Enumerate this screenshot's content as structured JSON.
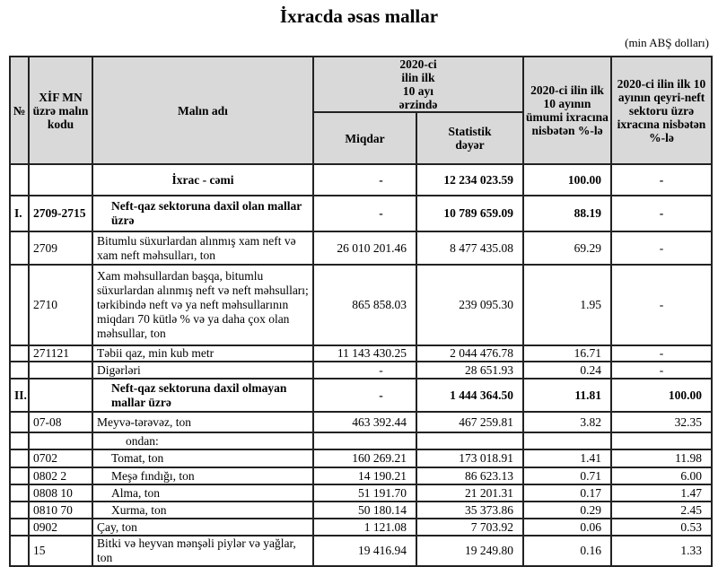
{
  "title": "İxracda əsas mallar",
  "unit": "(min ABŞ dolları)",
  "headers": {
    "no": "№",
    "code": "XİF MN üzrə malın kodu",
    "name": "Malın adı",
    "period": "2020-ci ilin ilk 10 ayı ərzində",
    "qty": "Miqdar",
    "value": "Statistik dəyər",
    "pct_total": "2020-ci ilin ilk 10 ayının ümumi ixracına nisbətən %-lə",
    "pct_nonoil": "2020-ci ilin ilk 10 ayının qeyri-neft sektoru üzrə ixracına nisbətən %-lə"
  },
  "rows": [
    {
      "no": "",
      "code": "",
      "name": "İxrac - cəmi",
      "qty": "-",
      "value": "12 234 023.59",
      "pct_total": "100.00",
      "pct_nonoil": "-",
      "kind": "total"
    },
    {
      "no": "I.",
      "code": "2709-2715",
      "name": "Neft-qaz sektoruna daxil olan mallar üzrə",
      "qty": "-",
      "value": "10 789 659.09",
      "pct_total": "88.19",
      "pct_nonoil": "-",
      "kind": "section"
    },
    {
      "no": "",
      "code": "2709",
      "name": "Bitumlu süxurlardan alınmış xam neft və xam neft məhsulları, ton",
      "qty": "26 010 201.46",
      "value": "8 477 435.08",
      "pct_total": "69.29",
      "pct_nonoil": "-",
      "kind": "item"
    },
    {
      "no": "",
      "code": "2710",
      "name": "Xam məhsullardan başqa, bitumlu süxurlardan alınmış neft və neft məhsulları; tərkibində neft və ya neft məhsullarının miqdarı 70 kütlə % və ya daha çox olan məhsullar, ton",
      "qty": "865 858.03",
      "value": "239 095.30",
      "pct_total": "1.95",
      "pct_nonoil": "-",
      "kind": "item"
    },
    {
      "no": "",
      "code": "271121",
      "name": "Təbii qaz, min kub metr",
      "qty": "11 143 430.25",
      "value": "2 044 476.78",
      "pct_total": "16.71",
      "pct_nonoil": "-",
      "kind": "item"
    },
    {
      "no": "",
      "code": "",
      "name": "Digərləri",
      "qty": "-",
      "value": "28 651.93",
      "pct_total": "0.24",
      "pct_nonoil": "-",
      "kind": "item"
    },
    {
      "no": "II.",
      "code": "",
      "name": "Neft-qaz sektoruna daxil olmayan mallar üzrə",
      "qty": "-",
      "value": "1 444 364.50",
      "pct_total": "11.81",
      "pct_nonoil": "100.00",
      "kind": "section"
    },
    {
      "no": "",
      "code": "07-08",
      "name": "Meyvə-tərəvəz, ton",
      "qty": "463 392.44",
      "value": "467 259.81",
      "pct_total": "3.82",
      "pct_nonoil": "32.35",
      "kind": "item"
    },
    {
      "no": "",
      "code": "",
      "name": "ondan:",
      "qty": "",
      "value": "",
      "pct_total": "",
      "pct_nonoil": "",
      "kind": "subhead"
    },
    {
      "no": "",
      "code": "0702",
      "name": "Tomat, ton",
      "qty": "160 269.21",
      "value": "173 018.91",
      "pct_total": "1.41",
      "pct_nonoil": "11.98",
      "kind": "sub"
    },
    {
      "no": "",
      "code": "0802 2",
      "name": "Meşə fındığı, ton",
      "qty": "14 190.21",
      "value": "86 623.13",
      "pct_total": "0.71",
      "pct_nonoil": "6.00",
      "kind": "sub"
    },
    {
      "no": "",
      "code": "0808 10",
      "name": "Alma, ton",
      "qty": "51 191.70",
      "value": "21 201.31",
      "pct_total": "0.17",
      "pct_nonoil": "1.47",
      "kind": "sub"
    },
    {
      "no": "",
      "code": "0810 70",
      "name": "Xurma, ton",
      "qty": "50 180.14",
      "value": "35 373.86",
      "pct_total": "0.29",
      "pct_nonoil": "2.45",
      "kind": "sub"
    },
    {
      "no": "",
      "code": "0902",
      "name": "Çay, ton",
      "qty": "1 121.08",
      "value": "7 703.92",
      "pct_total": "0.06",
      "pct_nonoil": "0.53",
      "kind": "item"
    },
    {
      "no": "",
      "code": "15",
      "name": "Bitki və heyvan mənşəli piylər və yağlar, ton",
      "qty": "19 416.94",
      "value": "19 249.80",
      "pct_total": "0.16",
      "pct_nonoil": "1.33",
      "kind": "item"
    }
  ]
}
